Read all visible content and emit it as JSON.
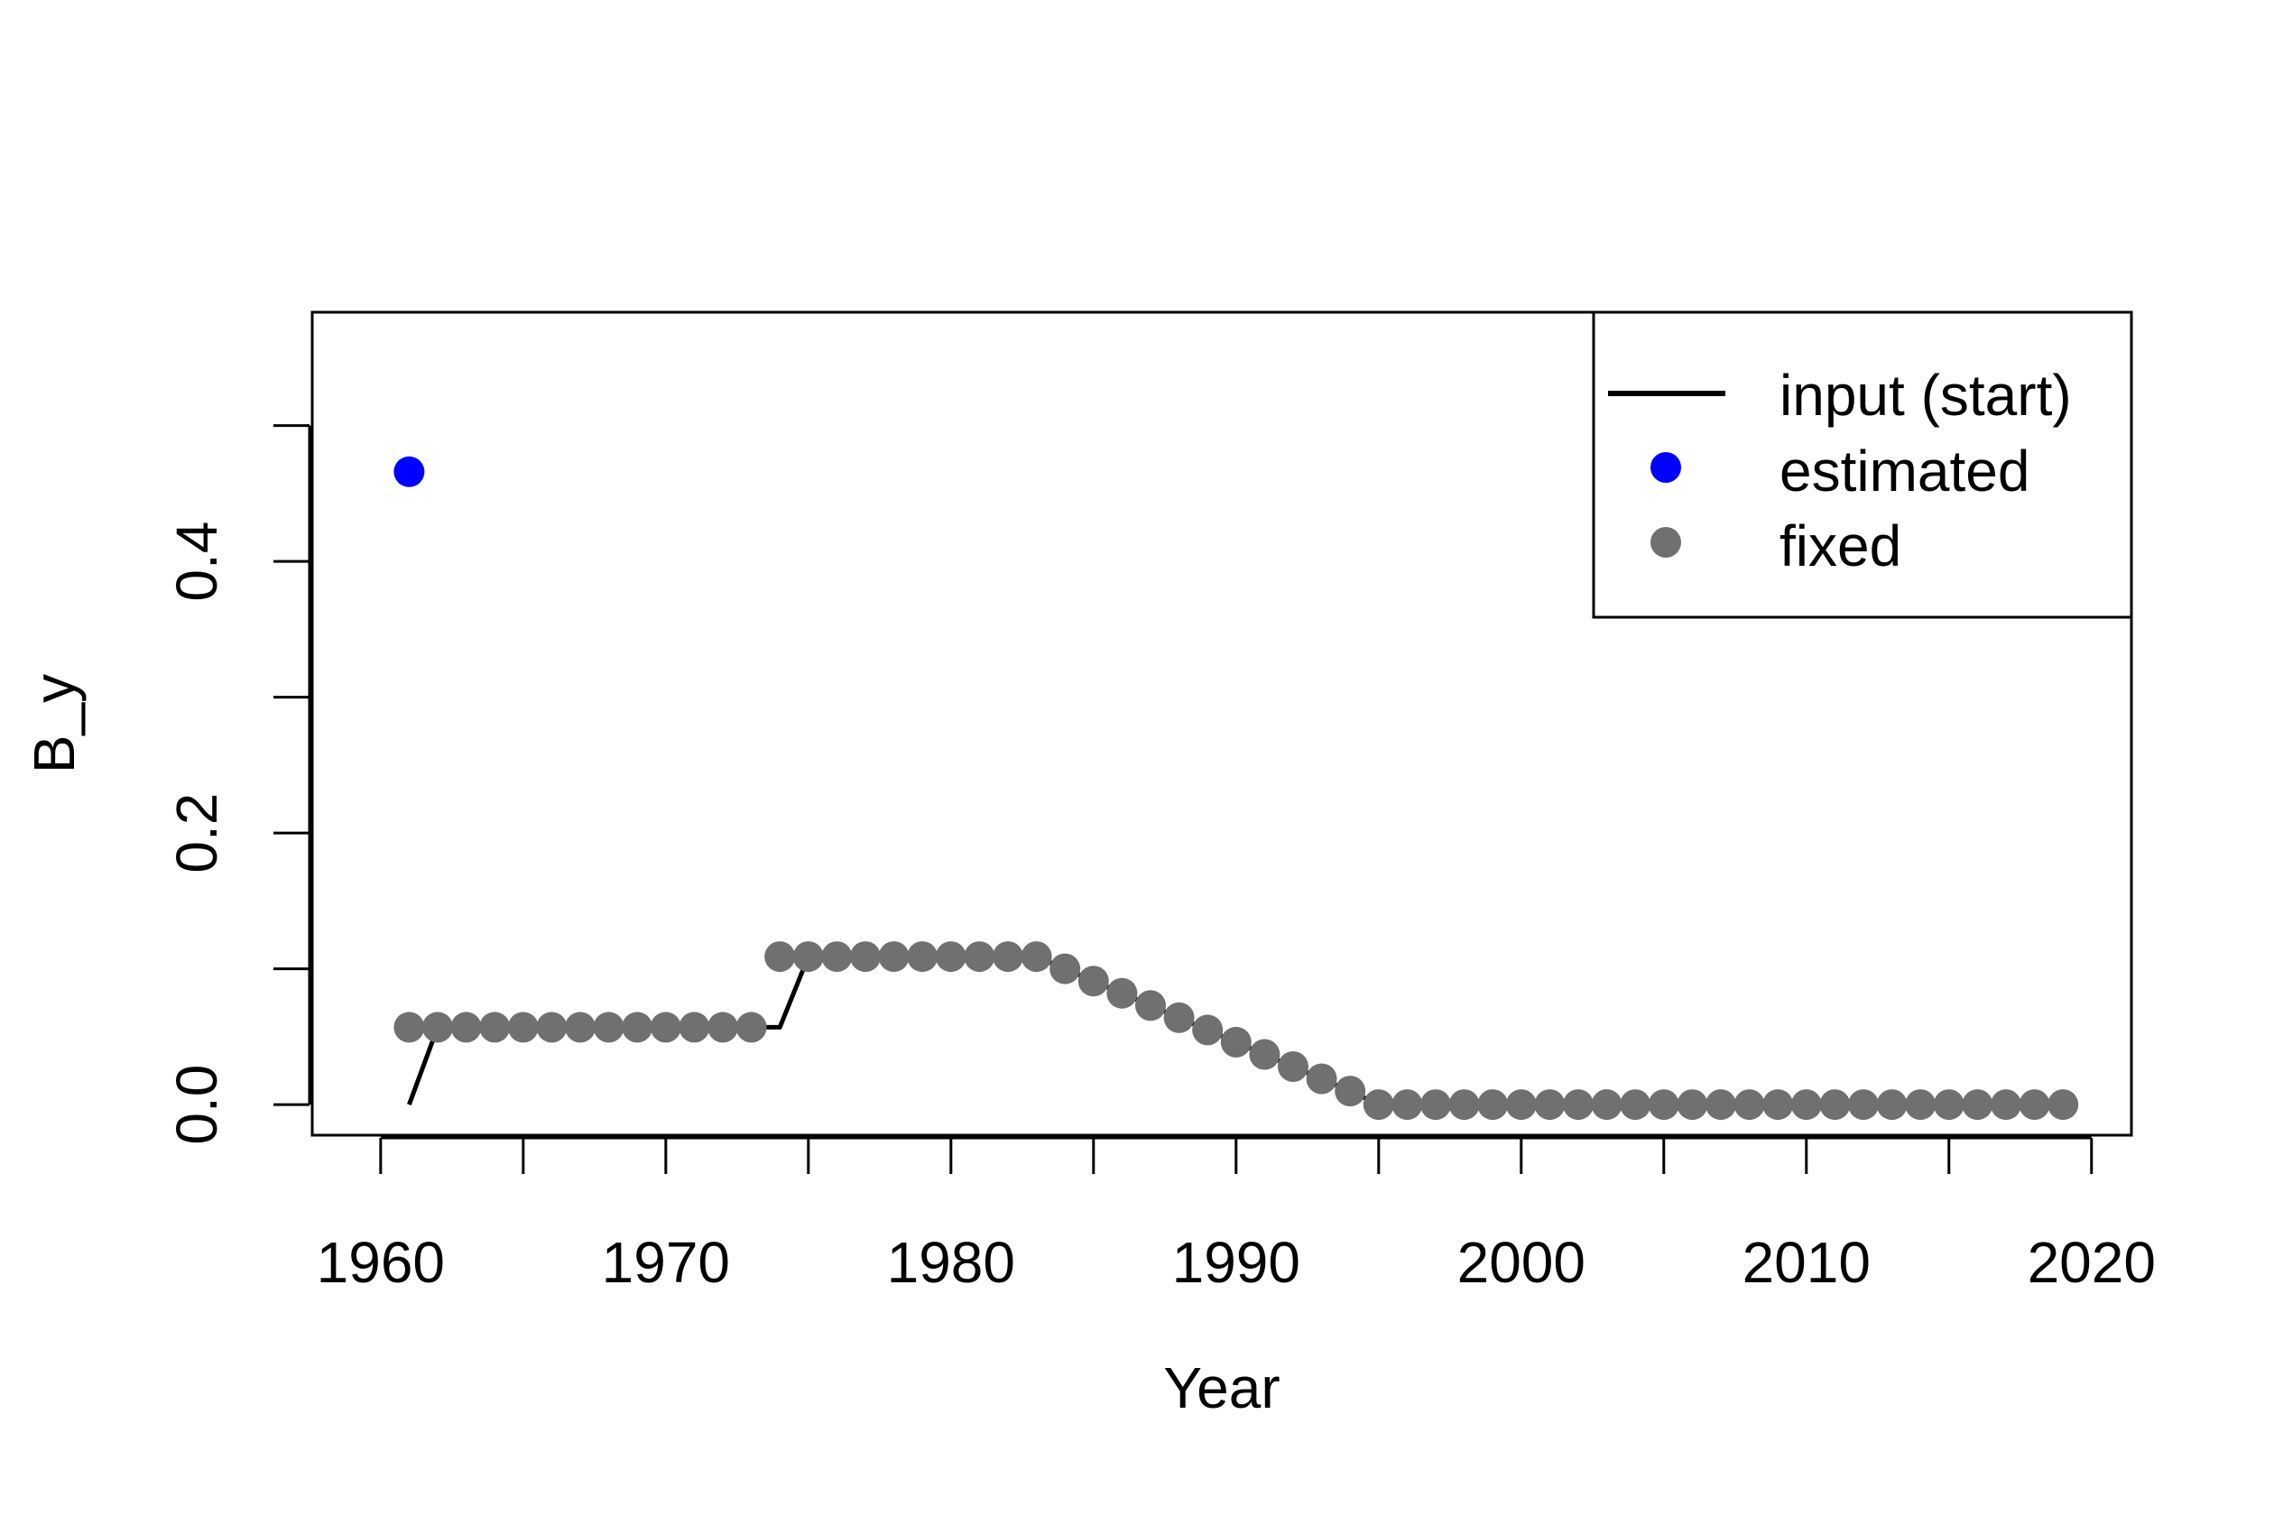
{
  "chart_data": {
    "type": "line",
    "xlabel": "Year",
    "ylabel": "B_y",
    "xlim": [
      1957.6,
      2021.4
    ],
    "ylim": [
      -0.0225,
      0.5835
    ],
    "x_ticks": [
      1960,
      1965,
      1970,
      1975,
      1980,
      1985,
      1990,
      1995,
      2000,
      2005,
      2010,
      2015,
      2020
    ],
    "x_tick_labels": [
      "1960",
      "1970",
      "1980",
      "1990",
      "2000",
      "2010",
      "2020"
    ],
    "x_tick_label_values": [
      1960,
      1970,
      1980,
      1990,
      2000,
      2010,
      2020
    ],
    "y_ticks": [
      0.0,
      0.1,
      0.2,
      0.3,
      0.4,
      0.5
    ],
    "y_tick_labels": [
      "0.0",
      "0.2",
      "0.4"
    ],
    "y_tick_label_values": [
      0.0,
      0.2,
      0.4
    ],
    "grid": false,
    "legend_position": "top-right",
    "legend": [
      {
        "label": "input (start)",
        "kind": "line",
        "color": "#000000"
      },
      {
        "label": "estimated",
        "kind": "point",
        "color": "#0000ff"
      },
      {
        "label": "fixed",
        "kind": "point",
        "color": "#707070"
      }
    ],
    "series": [
      {
        "name": "input (start)",
        "kind": "line",
        "color": "#000000",
        "x": [
          1961,
          1962,
          1963,
          1964,
          1965,
          1966,
          1967,
          1968,
          1969,
          1970,
          1971,
          1972,
          1973,
          1974,
          1975,
          1976,
          1977,
          1978,
          1979,
          1980,
          1981,
          1982,
          1983,
          1984,
          1985,
          1986,
          1987,
          1988,
          1989,
          1990,
          1991,
          1992,
          1993,
          1994,
          1995,
          1996,
          1997,
          1998,
          1999,
          2000,
          2001,
          2002,
          2003,
          2004,
          2005,
          2006,
          2007,
          2008,
          2009,
          2010,
          2011,
          2012,
          2013,
          2014,
          2015,
          2016,
          2017,
          2018,
          2019
        ],
        "y": [
          0.0,
          0.057,
          0.057,
          0.057,
          0.057,
          0.057,
          0.057,
          0.057,
          0.057,
          0.057,
          0.057,
          0.057,
          0.057,
          0.057,
          0.109,
          0.109,
          0.109,
          0.109,
          0.109,
          0.109,
          0.109,
          0.109,
          0.109,
          0.1,
          0.091,
          0.082,
          0.073,
          0.064,
          0.055,
          0.046,
          0.037,
          0.028,
          0.019,
          0.01,
          0.0,
          0.0,
          0.0,
          0.0,
          0.0,
          0.0,
          0.0,
          0.0,
          0.0,
          0.0,
          0.0,
          0.0,
          0.0,
          0.0,
          0.0,
          0.0,
          0.0,
          0.0,
          0.0,
          0.0,
          0.0,
          0.0,
          0.0,
          0.0,
          0.0
        ]
      },
      {
        "name": "estimated",
        "kind": "points",
        "color": "#0000ff",
        "x": [
          1961
        ],
        "y": [
          0.466
        ]
      },
      {
        "name": "fixed",
        "kind": "points",
        "color": "#707070",
        "x": [
          1961,
          1962,
          1963,
          1964,
          1965,
          1966,
          1967,
          1968,
          1969,
          1970,
          1971,
          1972,
          1973,
          1974,
          1975,
          1976,
          1977,
          1978,
          1979,
          1980,
          1981,
          1982,
          1983,
          1984,
          1985,
          1986,
          1987,
          1988,
          1989,
          1990,
          1991,
          1992,
          1993,
          1994,
          1995,
          1996,
          1997,
          1998,
          1999,
          2000,
          2001,
          2002,
          2003,
          2004,
          2005,
          2006,
          2007,
          2008,
          2009,
          2010,
          2011,
          2012,
          2013,
          2014,
          2015,
          2016,
          2017,
          2018,
          2019
        ],
        "y": [
          0.057,
          0.057,
          0.057,
          0.057,
          0.057,
          0.057,
          0.057,
          0.057,
          0.057,
          0.057,
          0.057,
          0.057,
          0.057,
          0.109,
          0.109,
          0.109,
          0.109,
          0.109,
          0.109,
          0.109,
          0.109,
          0.109,
          0.109,
          0.1,
          0.091,
          0.082,
          0.073,
          0.064,
          0.055,
          0.046,
          0.037,
          0.028,
          0.019,
          0.01,
          0.0,
          0.0,
          0.0,
          0.0,
          0.0,
          0.0,
          0.0,
          0.0,
          0.0,
          0.0,
          0.0,
          0.0,
          0.0,
          0.0,
          0.0,
          0.0,
          0.0,
          0.0,
          0.0,
          0.0,
          0.0,
          0.0,
          0.0,
          0.0,
          0.0
        ]
      }
    ]
  }
}
